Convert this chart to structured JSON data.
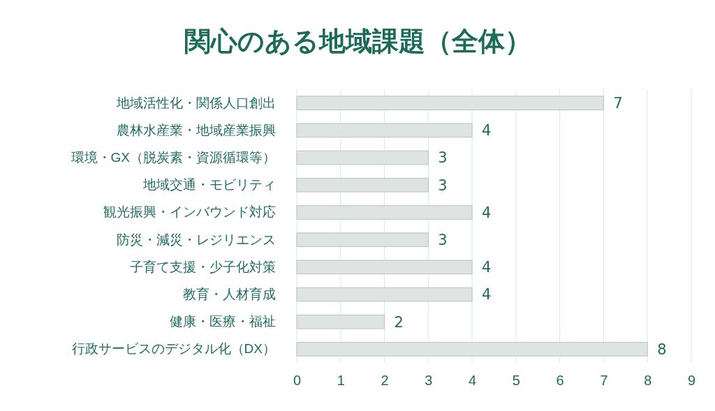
{
  "chart_data": {
    "type": "bar",
    "orientation": "horizontal",
    "title": "関心のある地域課題（全体）",
    "categories": [
      "地域活性化・関係人口創出",
      "農林水産業・地域産業振興",
      "環境・GX（脱炭素・資源循環等）",
      "地域交通・モビリティ",
      "観光振興・インバウンド対応",
      "防災・減災・レジリエンス",
      "子育て支援・少子化対策",
      "教育・人材育成",
      "健康・医療・福祉",
      "行政サービスのデジタル化（DX）"
    ],
    "values": [
      7,
      4,
      3,
      3,
      4,
      3,
      4,
      4,
      2,
      8
    ],
    "color": "#dde4e1",
    "xlim": [
      0,
      9
    ],
    "xticks": [
      0,
      1,
      2,
      3,
      4,
      5,
      6,
      7,
      8,
      9
    ],
    "grid": "x",
    "data_labels": true
  }
}
